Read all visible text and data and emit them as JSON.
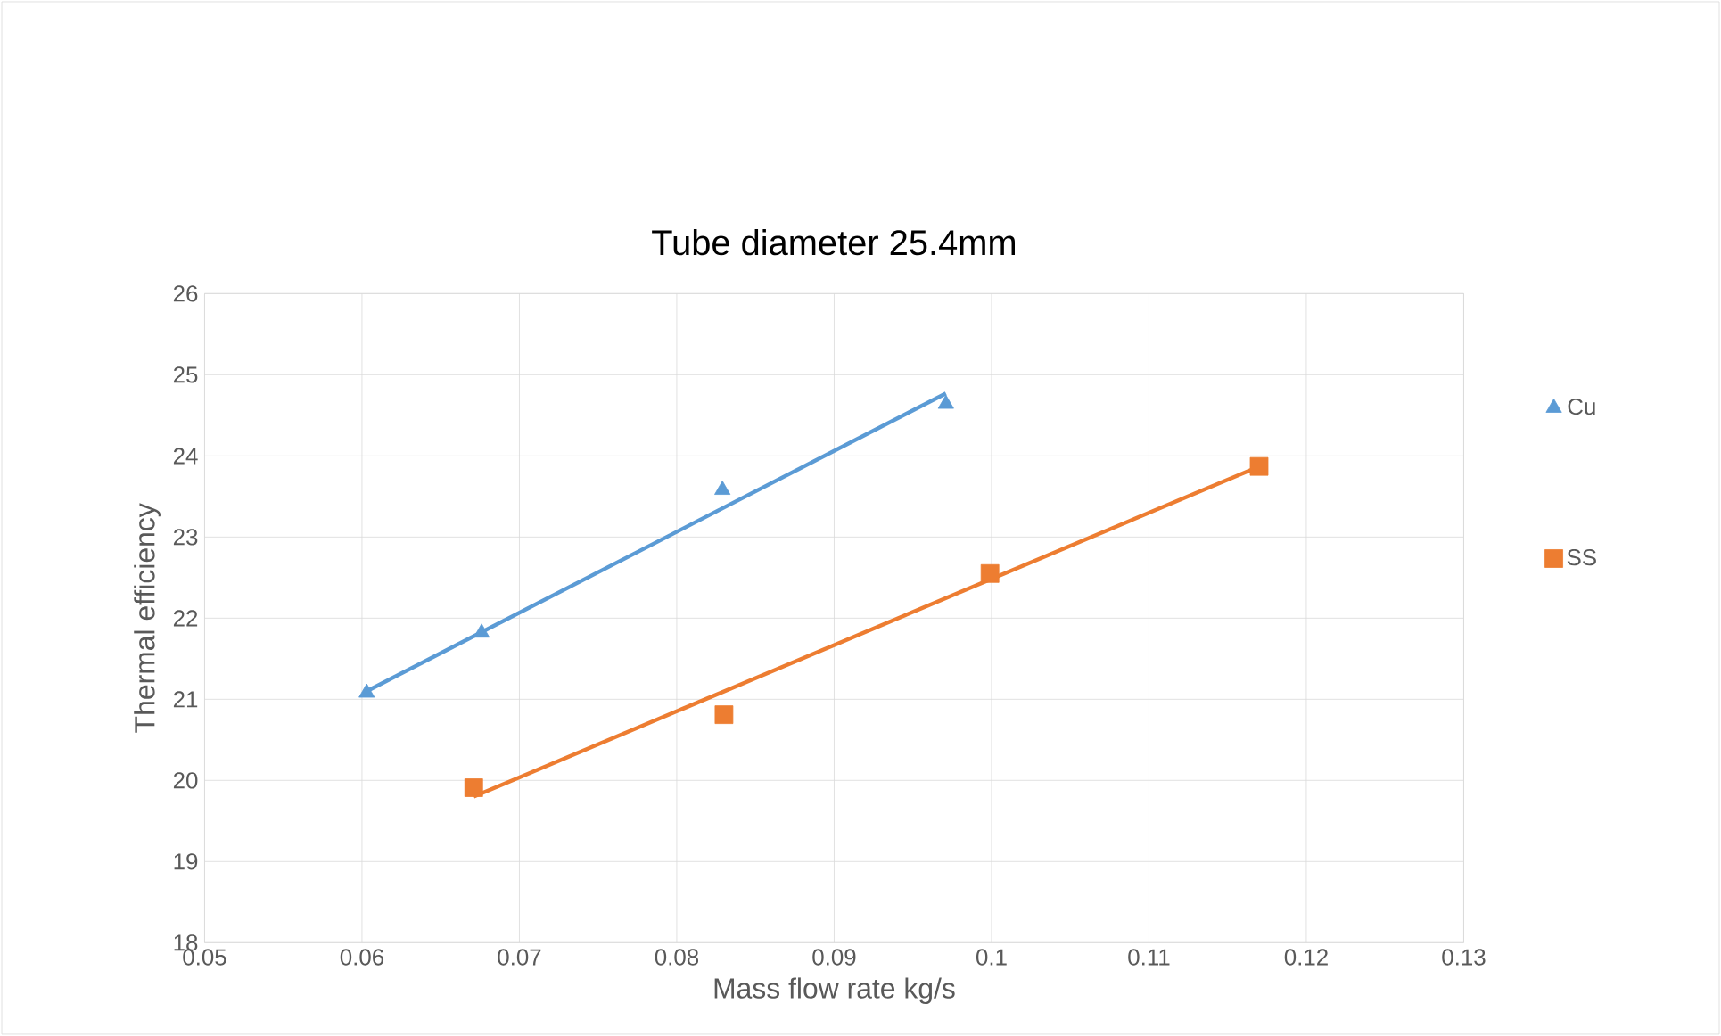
{
  "chart_data": {
    "type": "scatter",
    "title": "Tube diameter 25.4mm",
    "xlabel": "Mass flow rate kg/s",
    "ylabel": "Thermal efficiency",
    "series": [
      {
        "name": "Cu",
        "color": "#5b9bd5",
        "marker": "triangle",
        "x": [
          0.0603,
          0.0676,
          0.0829,
          0.0971
        ],
        "values": [
          21.08,
          21.82,
          23.58,
          24.64
        ]
      },
      {
        "name": "SS",
        "color": "#ed7d31",
        "marker": "square",
        "x": [
          0.0671,
          0.083,
          0.0999,
          0.117
        ],
        "values": [
          19.91,
          20.81,
          22.55,
          23.87
        ]
      },
      {
        "type": "line",
        "color": "#5b9bd5",
        "x": [
          0.0603,
          0.0971
        ],
        "values": [
          21.1,
          24.77
        ]
      },
      {
        "type": "line",
        "color": "#ed7d31",
        "x": [
          0.0671,
          0.117
        ],
        "values": [
          19.8,
          23.87
        ]
      }
    ],
    "xlim": [
      0.05,
      0.13
    ],
    "xticks": [
      0.05,
      0.06,
      0.07,
      0.08,
      0.09,
      0.1,
      0.11,
      0.12,
      0.13
    ],
    "ylim": [
      18,
      26
    ],
    "yticks": [
      18,
      19,
      20,
      21,
      22,
      23,
      24,
      25,
      26
    ],
    "grid": true,
    "legend": "right"
  }
}
